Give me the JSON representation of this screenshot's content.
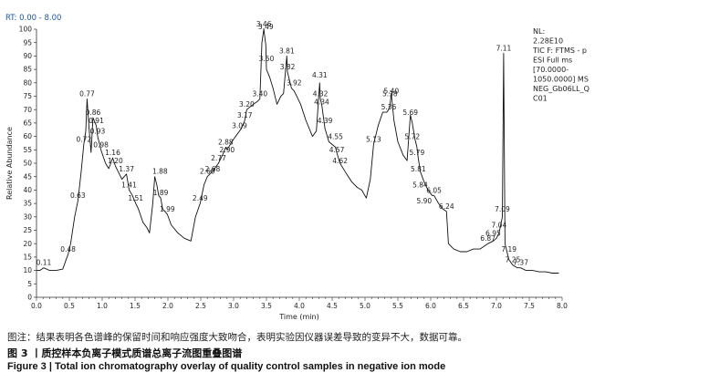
{
  "chart_data": {
    "type": "line",
    "rt_label": "RT: 0.00 - 8.00",
    "xlabel": "Time (min)",
    "ylabel": "Relative Abundance",
    "xlim": [
      0,
      8
    ],
    "ylim": [
      0,
      100
    ],
    "x_ticks": [
      "0.0",
      "0.5",
      "1.0",
      "1.5",
      "2.0",
      "2.5",
      "3.0",
      "3.5",
      "4.0",
      "4.5",
      "5.0",
      "5.5",
      "6.0",
      "6.5",
      "7.0",
      "7.5",
      "8.0"
    ],
    "y_ticks": [
      "0",
      "5",
      "10",
      "15",
      "20",
      "25",
      "30",
      "35",
      "40",
      "45",
      "50",
      "55",
      "60",
      "65",
      "70",
      "75",
      "80",
      "85",
      "90",
      "95",
      "100"
    ],
    "series": [
      {
        "color": "#111111",
        "points": [
          [
            0.0,
            10
          ],
          [
            0.05,
            10
          ],
          [
            0.11,
            11
          ],
          [
            0.2,
            10
          ],
          [
            0.3,
            10
          ],
          [
            0.4,
            10.5
          ],
          [
            0.45,
            14
          ],
          [
            0.48,
            16
          ],
          [
            0.52,
            20
          ],
          [
            0.58,
            30
          ],
          [
            0.63,
            36
          ],
          [
            0.68,
            47
          ],
          [
            0.72,
            57
          ],
          [
            0.75,
            62
          ],
          [
            0.77,
            74
          ],
          [
            0.8,
            63
          ],
          [
            0.83,
            54
          ],
          [
            0.86,
            67
          ],
          [
            0.91,
            64
          ],
          [
            0.93,
            60
          ],
          [
            0.98,
            55
          ],
          [
            1.05,
            50
          ],
          [
            1.1,
            48
          ],
          [
            1.16,
            52
          ],
          [
            1.2,
            49
          ],
          [
            1.3,
            44
          ],
          [
            1.37,
            46
          ],
          [
            1.41,
            40
          ],
          [
            1.46,
            38
          ],
          [
            1.51,
            35
          ],
          [
            1.55,
            33
          ],
          [
            1.62,
            28
          ],
          [
            1.68,
            26
          ],
          [
            1.72,
            24
          ],
          [
            1.77,
            35
          ],
          [
            1.8,
            45
          ],
          [
            1.83,
            42
          ],
          [
            1.86,
            38
          ],
          [
            1.89,
            37
          ],
          [
            1.92,
            33
          ],
          [
            1.99,
            31
          ],
          [
            2.05,
            27
          ],
          [
            2.15,
            24
          ],
          [
            2.25,
            22
          ],
          [
            2.35,
            21
          ],
          [
            2.42,
            30
          ],
          [
            2.49,
            35
          ],
          [
            2.55,
            42
          ],
          [
            2.6,
            45
          ],
          [
            2.68,
            47
          ],
          [
            2.77,
            50
          ],
          [
            2.83,
            53
          ],
          [
            2.88,
            56
          ],
          [
            2.9,
            55
          ],
          [
            3.0,
            59
          ],
          [
            3.09,
            62
          ],
          [
            3.12,
            63
          ],
          [
            3.17,
            66
          ],
          [
            3.2,
            70
          ],
          [
            3.3,
            72
          ],
          [
            3.36,
            73
          ],
          [
            3.4,
            74
          ],
          [
            3.43,
            95
          ],
          [
            3.46,
            100
          ],
          [
            3.49,
            94
          ],
          [
            3.5,
            85
          ],
          [
            3.55,
            82
          ],
          [
            3.6,
            78
          ],
          [
            3.66,
            72
          ],
          [
            3.72,
            75
          ],
          [
            3.76,
            76
          ],
          [
            3.81,
            90
          ],
          [
            3.82,
            84
          ],
          [
            3.88,
            78
          ],
          [
            3.92,
            77
          ],
          [
            3.98,
            74
          ],
          [
            4.02,
            72
          ],
          [
            4.1,
            66
          ],
          [
            4.2,
            60
          ],
          [
            4.26,
            62
          ],
          [
            4.31,
            80
          ],
          [
            4.32,
            74
          ],
          [
            4.34,
            72
          ],
          [
            4.39,
            63
          ],
          [
            4.45,
            58
          ],
          [
            4.55,
            56
          ],
          [
            4.57,
            54
          ],
          [
            4.62,
            50
          ],
          [
            4.72,
            46
          ],
          [
            4.8,
            43
          ],
          [
            4.88,
            41
          ],
          [
            4.95,
            40
          ],
          [
            5.02,
            37
          ],
          [
            5.08,
            44
          ],
          [
            5.13,
            57
          ],
          [
            5.2,
            64
          ],
          [
            5.27,
            69
          ],
          [
            5.33,
            69
          ],
          [
            5.36,
            70
          ],
          [
            5.38,
            72
          ],
          [
            5.4,
            76
          ],
          [
            5.44,
            66
          ],
          [
            5.5,
            58
          ],
          [
            5.58,
            53
          ],
          [
            5.64,
            51
          ],
          [
            5.69,
            68
          ],
          [
            5.72,
            65
          ],
          [
            5.76,
            59
          ],
          [
            5.79,
            56
          ],
          [
            5.81,
            52
          ],
          [
            5.84,
            47
          ],
          [
            5.9,
            43
          ],
          [
            5.96,
            40
          ],
          [
            6.02,
            38
          ],
          [
            6.05,
            38
          ],
          [
            6.12,
            35
          ],
          [
            6.18,
            33
          ],
          [
            6.24,
            32
          ],
          [
            6.27,
            20
          ],
          [
            6.35,
            18
          ],
          [
            6.45,
            17
          ],
          [
            6.55,
            17
          ],
          [
            6.65,
            18
          ],
          [
            6.75,
            18
          ],
          [
            6.87,
            20
          ],
          [
            6.95,
            21
          ],
          [
            7.0,
            22
          ],
          [
            7.04,
            24
          ],
          [
            7.09,
            30
          ],
          [
            7.11,
            91
          ],
          [
            7.13,
            20
          ],
          [
            7.16,
            17
          ],
          [
            7.19,
            14
          ],
          [
            7.22,
            13
          ],
          [
            7.25,
            12
          ],
          [
            7.32,
            11
          ],
          [
            7.37,
            11
          ],
          [
            7.45,
            10
          ],
          [
            7.55,
            10
          ],
          [
            7.65,
            9.5
          ],
          [
            7.75,
            9.5
          ],
          [
            7.85,
            9
          ],
          [
            7.95,
            9
          ]
        ]
      }
    ],
    "peak_labels": [
      {
        "x": 0.11,
        "y": 11,
        "text": "0.11"
      },
      {
        "x": 0.48,
        "y": 16,
        "text": "0.48"
      },
      {
        "x": 0.63,
        "y": 36,
        "text": "0.63"
      },
      {
        "x": 0.72,
        "y": 57,
        "text": "0.72"
      },
      {
        "x": 0.77,
        "y": 74,
        "text": "0.77"
      },
      {
        "x": 0.86,
        "y": 67,
        "text": "0.86"
      },
      {
        "x": 0.91,
        "y": 64,
        "text": "0.91"
      },
      {
        "x": 0.93,
        "y": 60,
        "text": "0.93"
      },
      {
        "x": 0.98,
        "y": 55,
        "text": "0.98"
      },
      {
        "x": 1.16,
        "y": 52,
        "text": "1.16"
      },
      {
        "x": 1.2,
        "y": 49,
        "text": "1.20"
      },
      {
        "x": 1.37,
        "y": 46,
        "text": "1.37"
      },
      {
        "x": 1.41,
        "y": 40,
        "text": "1.41"
      },
      {
        "x": 1.51,
        "y": 35,
        "text": "1.51"
      },
      {
        "x": 1.88,
        "y": 45,
        "text": "1.88"
      },
      {
        "x": 1.89,
        "y": 37,
        "text": "1.89"
      },
      {
        "x": 1.99,
        "y": 31,
        "text": "1.99"
      },
      {
        "x": 2.49,
        "y": 35,
        "text": "2.49"
      },
      {
        "x": 2.6,
        "y": 45,
        "text": "2.60"
      },
      {
        "x": 2.68,
        "y": 46,
        "text": "2.68"
      },
      {
        "x": 2.77,
        "y": 50,
        "text": "2.77"
      },
      {
        "x": 2.88,
        "y": 56,
        "text": "2.88"
      },
      {
        "x": 2.9,
        "y": 53,
        "text": "2.90"
      },
      {
        "x": 3.09,
        "y": 62,
        "text": "3.09"
      },
      {
        "x": 3.17,
        "y": 66,
        "text": "3.17"
      },
      {
        "x": 3.2,
        "y": 70,
        "text": "3.20"
      },
      {
        "x": 3.4,
        "y": 74,
        "text": "3.40"
      },
      {
        "x": 3.46,
        "y": 100,
        "text": "3.46"
      },
      {
        "x": 3.49,
        "y": 99,
        "text": "3.49"
      },
      {
        "x": 3.5,
        "y": 87,
        "text": "3.50"
      },
      {
        "x": 3.81,
        "y": 90,
        "text": "3.81"
      },
      {
        "x": 3.82,
        "y": 84,
        "text": "3.82"
      },
      {
        "x": 3.92,
        "y": 78,
        "text": "3.92"
      },
      {
        "x": 4.31,
        "y": 81,
        "text": "4.31"
      },
      {
        "x": 4.32,
        "y": 74,
        "text": "4.32"
      },
      {
        "x": 4.34,
        "y": 71,
        "text": "4.34"
      },
      {
        "x": 4.39,
        "y": 64,
        "text": "4.39"
      },
      {
        "x": 4.55,
        "y": 58,
        "text": "4.55"
      },
      {
        "x": 4.57,
        "y": 53,
        "text": "4.57"
      },
      {
        "x": 4.62,
        "y": 49,
        "text": "4.62"
      },
      {
        "x": 5.13,
        "y": 57,
        "text": "5.13"
      },
      {
        "x": 5.36,
        "y": 69,
        "text": "5.36"
      },
      {
        "x": 5.38,
        "y": 74,
        "text": "5.38"
      },
      {
        "x": 5.4,
        "y": 75,
        "text": "5.40"
      },
      {
        "x": 5.69,
        "y": 67,
        "text": "5.69"
      },
      {
        "x": 5.72,
        "y": 58,
        "text": "5.72"
      },
      {
        "x": 5.79,
        "y": 52,
        "text": "5.79"
      },
      {
        "x": 5.81,
        "y": 46,
        "text": "5.81"
      },
      {
        "x": 5.84,
        "y": 40,
        "text": "5.84"
      },
      {
        "x": 5.9,
        "y": 34,
        "text": "5.90"
      },
      {
        "x": 6.05,
        "y": 38,
        "text": "6.05"
      },
      {
        "x": 6.24,
        "y": 32,
        "text": "6.24"
      },
      {
        "x": 6.87,
        "y": 20,
        "text": "6.87"
      },
      {
        "x": 6.95,
        "y": 22,
        "text": "6.95"
      },
      {
        "x": 7.04,
        "y": 25,
        "text": "7.04"
      },
      {
        "x": 7.09,
        "y": 31,
        "text": "7.09"
      },
      {
        "x": 7.11,
        "y": 91,
        "text": "7.11"
      },
      {
        "x": 7.19,
        "y": 16,
        "text": "7.19"
      },
      {
        "x": 7.25,
        "y": 12,
        "text": "7.25"
      },
      {
        "x": 7.37,
        "y": 11,
        "text": "7.37"
      }
    ],
    "scan_info": [
      "NL:",
      "2.28E10",
      "TIC F: FTMS - p",
      "ESI Full ms",
      "[70.0000-",
      "1050.0000] MS",
      "NEG_Gb06LL_Q",
      "C01"
    ]
  },
  "captions": {
    "note": "图注：结果表明各色谱峰的保留时间和响应强度大致吻合，表明实验因仪器误差导致的变异不大，数据可靠。",
    "figure_cn": "图 3 丨质控样本负离子模式质谱总离子流图重叠图谱",
    "figure_en": "Figure 3  |  Total ion chromatography overlay of quality control samples in negative ion mode"
  },
  "colors": {
    "line": "#111111",
    "axis": "#333333",
    "rt_label": "#1a56a8"
  }
}
